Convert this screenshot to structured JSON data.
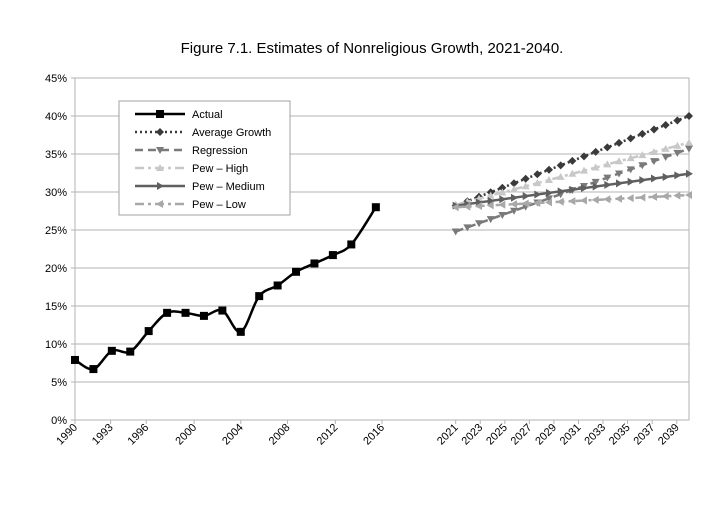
{
  "chart_data": {
    "type": "line",
    "title": "Figure 7.1. Estimates of Nonreligious Growth, 2021-2040.",
    "xlabel": "",
    "ylabel": "",
    "xlim": [
      1990,
      2040
    ],
    "ylim": [
      0,
      45
    ],
    "grid": true,
    "legend_position": "top-left",
    "y_ticks": [
      0,
      5,
      10,
      15,
      20,
      25,
      30,
      35,
      40,
      45
    ],
    "y_tick_labels": [
      "0%",
      "5%",
      "10%",
      "15%",
      "20%",
      "25%",
      "30%",
      "35%",
      "40%",
      "45%"
    ],
    "x_tick_labels": [
      "1990",
      "1993",
      "1996",
      "2000",
      "2004",
      "2008",
      "2012",
      "2016",
      "2021",
      "2023",
      "2025",
      "2027",
      "2029",
      "2031",
      "2033",
      "2035",
      "2037",
      "2039"
    ],
    "x_tick_values": [
      1990,
      1992.9,
      1995.8,
      1999.7,
      2003.5,
      2007.3,
      2011.2,
      2015,
      2021,
      2023,
      2025,
      2027,
      2029,
      2031,
      2033,
      2035,
      2037,
      2039
    ],
    "series": [
      {
        "name": "Actual",
        "color": "#000000",
        "style": "solid",
        "marker": "square",
        "points": [
          [
            1990,
            7.9
          ],
          [
            1991.5,
            6.7
          ],
          [
            1993,
            9.1
          ],
          [
            1994.5,
            9.0
          ],
          [
            1996,
            11.7
          ],
          [
            1997.5,
            14.1
          ],
          [
            1999,
            14.1
          ],
          [
            2000.5,
            13.7
          ],
          [
            2002,
            14.4
          ],
          [
            2003.5,
            11.6
          ],
          [
            2005,
            16.3
          ],
          [
            2006.5,
            17.7
          ],
          [
            2008,
            19.5
          ],
          [
            2009.5,
            20.6
          ],
          [
            2011,
            21.7
          ],
          [
            2012.5,
            23.1
          ],
          [
            2014.5,
            28.0
          ]
        ]
      },
      {
        "name": "Average Growth",
        "color": "#3a3a3a",
        "style": "dotted",
        "marker": "diamond",
        "points": [
          [
            2021,
            28.2
          ],
          [
            2040,
            40.0
          ]
        ]
      },
      {
        "name": "Regression",
        "color": "#7a7a7a",
        "style": "dashed",
        "marker": "triangle-down",
        "points": [
          [
            2021,
            24.8
          ],
          [
            2040,
            35.7
          ]
        ]
      },
      {
        "name": "Pew – High",
        "color": "#c8c8c8",
        "style": "dashdot",
        "marker": "triangle-up",
        "points": [
          [
            2021,
            28.3
          ],
          [
            2040,
            36.5
          ]
        ]
      },
      {
        "name": "Pew – Medium",
        "color": "#5f5f5f",
        "style": "solid",
        "marker": "triangle-right",
        "points": [
          [
            2021,
            28.2
          ],
          [
            2040,
            32.4
          ]
        ]
      },
      {
        "name": "Pew – Low",
        "color": "#a8a8a8",
        "style": "dashdot",
        "marker": "triangle-left",
        "points": [
          [
            2021,
            28.0
          ],
          [
            2040,
            29.6
          ]
        ]
      }
    ]
  }
}
